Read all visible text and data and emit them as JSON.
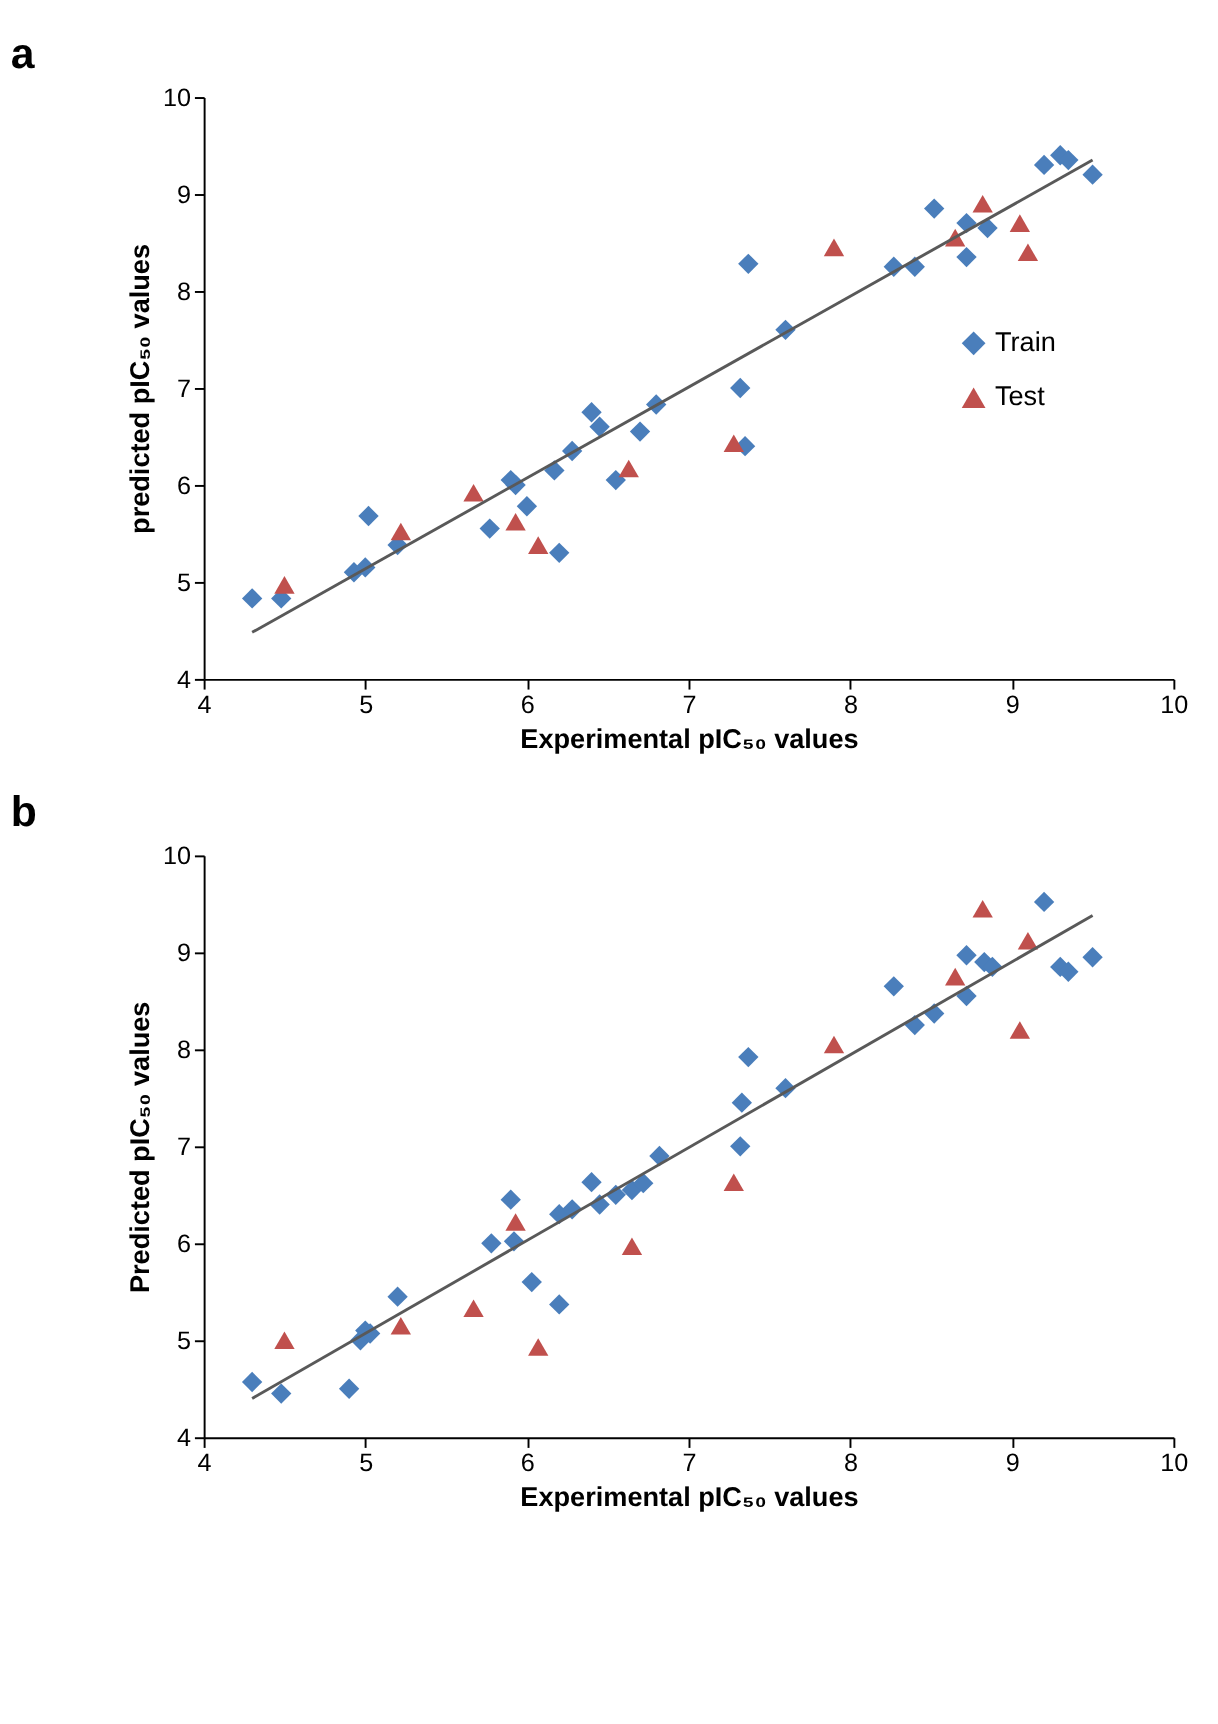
{
  "chart_data": [
    {
      "type": "scatter",
      "title": "a",
      "xlabel": "Experimental pIC₅₀ values",
      "ylabel": "predicted pIC₅₀ values",
      "xlim": [
        4,
        10
      ],
      "ylim": [
        4,
        10
      ],
      "xticks": [
        4,
        5,
        6,
        7,
        8,
        9,
        10
      ],
      "yticks": [
        4,
        5,
        6,
        7,
        8,
        9,
        10
      ],
      "grid": false,
      "legend": "right",
      "series": [
        {
          "name": "Train",
          "color": "#4a7ebb",
          "marker": "diamond",
          "x": [
            4.3,
            4.48,
            4.93,
            5.0,
            5.02,
            5.2,
            5.77,
            5.9,
            5.93,
            6.0,
            6.17,
            6.2,
            6.28,
            6.4,
            6.45,
            6.55,
            6.7,
            6.8,
            7.32,
            7.35,
            7.37,
            7.6,
            8.27,
            8.4,
            8.52,
            8.72,
            8.72,
            8.85,
            9.2,
            9.3,
            9.35,
            9.5
          ],
          "values": [
            4.83,
            4.83,
            5.1,
            5.15,
            5.68,
            5.38,
            5.55,
            6.05,
            6.0,
            5.78,
            6.15,
            5.3,
            6.35,
            6.75,
            6.6,
            6.05,
            6.55,
            6.83,
            7.0,
            6.4,
            8.28,
            7.6,
            8.25,
            8.25,
            8.85,
            8.35,
            8.7,
            8.65,
            9.3,
            9.4,
            9.35,
            9.2
          ]
        },
        {
          "name": "Test",
          "color": "#c0504d",
          "marker": "triangle",
          "x": [
            4.5,
            5.22,
            5.67,
            5.93,
            6.07,
            6.63,
            7.28,
            7.9,
            8.65,
            8.82,
            9.05,
            9.1
          ],
          "values": [
            4.97,
            5.52,
            5.92,
            5.62,
            5.38,
            6.17,
            6.43,
            8.45,
            8.55,
            8.9,
            8.7,
            8.4
          ]
        },
        {
          "type": "line",
          "color": "#595959",
          "x": [
            4.3,
            9.5
          ],
          "values": [
            4.48,
            9.35
          ]
        }
      ]
    },
    {
      "type": "scatter",
      "title": "b",
      "xlabel": "Experimental pIC₅₀ values",
      "ylabel": "Predicted pIC₅₀ values",
      "xlim": [
        4,
        10
      ],
      "ylim": [
        4,
        10
      ],
      "xticks": [
        4,
        5,
        6,
        7,
        8,
        9,
        10
      ],
      "yticks": [
        4,
        5,
        6,
        7,
        8,
        9,
        10
      ],
      "grid": false,
      "legend": "right",
      "series": [
        {
          "name": "Train",
          "color": "#4a7ebb",
          "marker": "diamond",
          "x": [
            4.3,
            4.48,
            4.9,
            4.97,
            5.0,
            5.03,
            5.2,
            5.78,
            5.9,
            5.92,
            6.03,
            6.2,
            6.2,
            6.28,
            6.4,
            6.45,
            6.55,
            6.65,
            6.72,
            6.82,
            7.32,
            7.33,
            7.37,
            7.6,
            8.27,
            8.4,
            8.52,
            8.72,
            8.72,
            8.83,
            8.88,
            9.2,
            9.3,
            9.35,
            9.5
          ],
          "values": [
            4.57,
            4.45,
            4.5,
            5.0,
            5.1,
            5.07,
            5.45,
            6.0,
            6.45,
            6.02,
            5.6,
            5.37,
            6.3,
            6.35,
            6.63,
            6.4,
            6.5,
            6.55,
            6.62,
            6.9,
            7.0,
            7.45,
            7.92,
            7.6,
            8.65,
            8.25,
            8.37,
            8.55,
            8.97,
            8.9,
            8.85,
            9.52,
            8.85,
            8.8,
            8.95
          ]
        },
        {
          "name": "Test",
          "color": "#c0504d",
          "marker": "triangle",
          "x": [
            4.5,
            5.22,
            5.67,
            5.93,
            6.07,
            6.65,
            7.28,
            7.9,
            8.65,
            8.82,
            9.05,
            9.1
          ],
          "values": [
            5.0,
            5.15,
            5.33,
            6.22,
            4.93,
            5.97,
            6.63,
            8.05,
            8.75,
            9.45,
            8.2,
            9.12
          ]
        },
        {
          "type": "line",
          "color": "#595959",
          "x": [
            4.3,
            9.5
          ],
          "values": [
            4.4,
            9.38
          ]
        }
      ]
    }
  ]
}
